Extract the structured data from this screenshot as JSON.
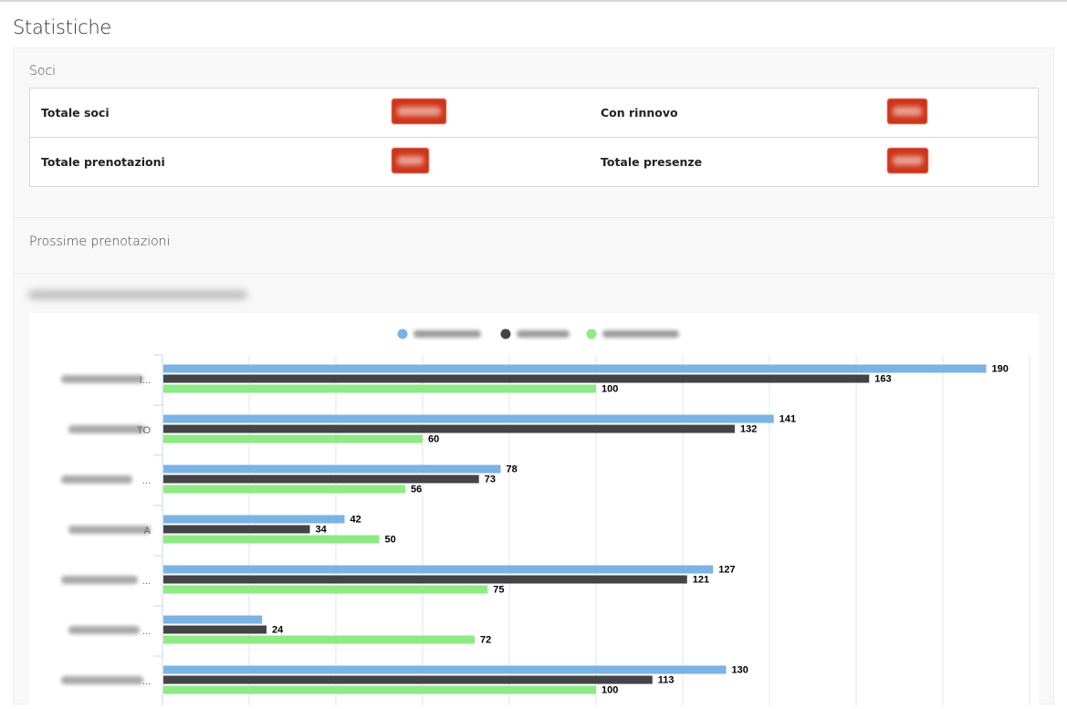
{
  "page": {
    "title": "Statistiche"
  },
  "soci": {
    "title": "Soci",
    "rows": [
      {
        "left_label": "Totale soci",
        "right_label": "Con rinnovo"
      },
      {
        "left_label": "Totale prenotazioni",
        "right_label": "Totale presenze"
      }
    ],
    "badge_color": "#cf3418"
  },
  "prenotazioni": {
    "title": "Prossime prenotazioni"
  },
  "chart_data": {
    "type": "bar",
    "orientation": "horizontal",
    "grid": true,
    "legend_position": "top-center",
    "xlim": [
      0,
      200
    ],
    "category_label_suffixes": [
      "I...",
      "TO",
      "...",
      "A",
      "...",
      "...",
      "..."
    ],
    "series": [
      {
        "color": "#7ab3e5",
        "values": [
          190,
          141,
          78,
          42,
          127,
          23,
          130
        ]
      },
      {
        "color": "#434348",
        "values": [
          163,
          132,
          73,
          34,
          121,
          24,
          113
        ]
      },
      {
        "color": "#8ceb82",
        "values": [
          100,
          60,
          56,
          50,
          75,
          72,
          100
        ]
      }
    ],
    "value_labels_shown": [
      [
        true,
        true,
        true,
        true,
        true,
        false,
        true
      ],
      [
        true,
        true,
        true,
        true,
        true,
        true,
        true
      ],
      [
        true,
        true,
        true,
        true,
        true,
        true,
        true
      ]
    ]
  }
}
